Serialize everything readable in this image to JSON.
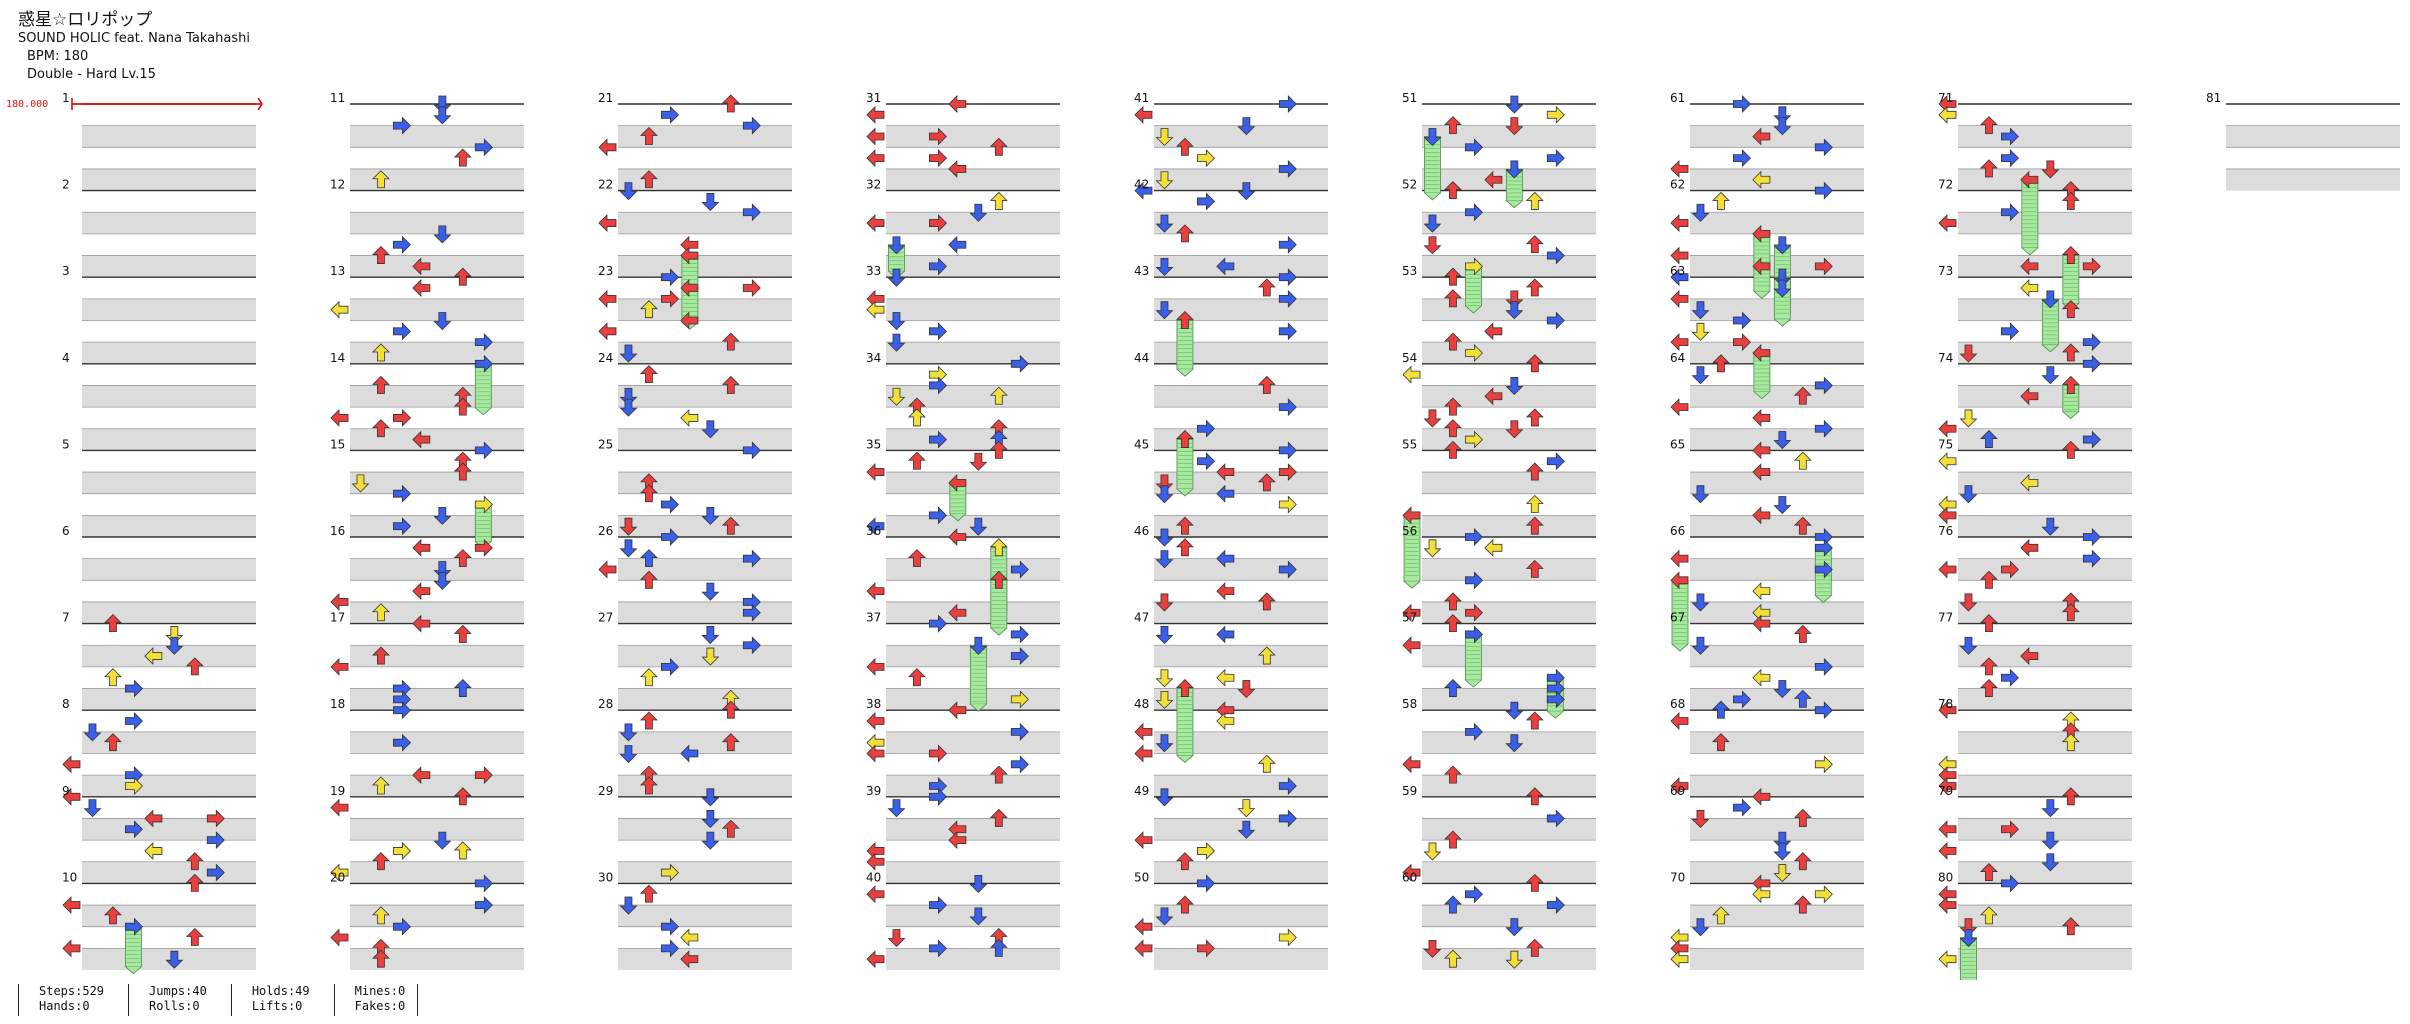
{
  "song": {
    "title": "惑星☆ロリポップ",
    "artist": "SOUND HOLIC feat. Nana Takahashi",
    "bpm_label": "BPM: 180",
    "difficulty_label": "Double - Hard  Lv.15"
  },
  "bpm_marker": "180.000",
  "measure_count": 81,
  "columns_measures": 10,
  "stats": {
    "col1": [
      "Steps:529",
      "Hands:0"
    ],
    "col2": [
      "Jumps:40",
      "Rolls:0"
    ],
    "col3": [
      "Holds:49",
      "Lifts:0"
    ],
    "col4": [
      "Mines:0",
      "Fakes:0"
    ]
  },
  "colors": {
    "left": "#e8403f",
    "down": "#3a5fe8",
    "up": "#e8403f",
    "right": "#3a5fe8",
    "eighth_blue": "#3a5fe8",
    "sixteenth": "#f2df3a",
    "hold": "#a9e8a0",
    "stripe": "#dcdcdc",
    "bpm_line": "#e01010"
  }
}
